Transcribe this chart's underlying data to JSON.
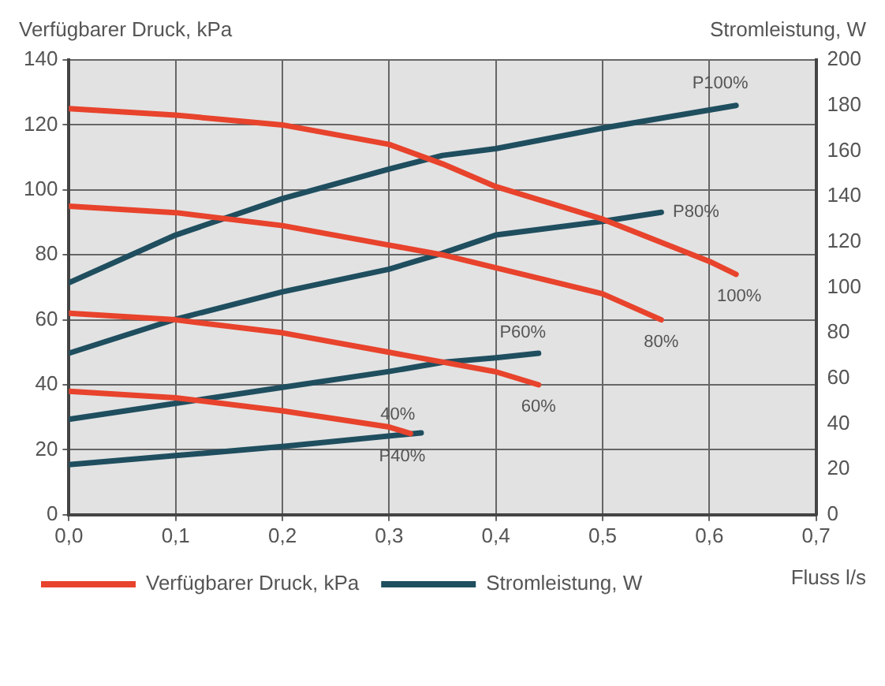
{
  "chart_data": {
    "type": "line",
    "ylabel": "Verfügbarer Druck, kPa",
    "y2label": "Stromleistung, W",
    "xlabel": "Fluss l/s",
    "xlim": [
      0,
      0.7
    ],
    "xticks": [
      {
        "value": 0,
        "label": "0,0"
      },
      {
        "value": 0.1,
        "label": "0,1"
      },
      {
        "value": 0.2,
        "label": "0,2"
      },
      {
        "value": 0.3,
        "label": "0,3"
      },
      {
        "value": 0.4,
        "label": "0,4"
      },
      {
        "value": 0.5,
        "label": "0,5"
      },
      {
        "value": 0.6,
        "label": "0,6"
      },
      {
        "value": 0.7,
        "label": "0,7"
      }
    ],
    "ylim": [
      0,
      140
    ],
    "yticks": [
      0,
      20,
      40,
      60,
      80,
      100,
      120,
      140
    ],
    "y2lim": [
      0,
      200
    ],
    "y2ticks": [
      0,
      20,
      40,
      60,
      80,
      100,
      120,
      140,
      160,
      180,
      200
    ],
    "grid": true,
    "legend": "bottom",
    "marker": "none",
    "line_style": "solid",
    "series": [
      {
        "name": "Verfügbarer Druck, kPa",
        "color": "#e8432c",
        "x": [
          0,
          0.1,
          0.2,
          0.3,
          0.35,
          0.4,
          0.5,
          0.6,
          0.625
        ],
        "values": [
          125,
          123,
          120,
          114,
          108,
          101,
          91,
          78,
          74
        ]
      },
      {
        "color": "#e8432c",
        "x": [
          0,
          0.1,
          0.2,
          0.3,
          0.35,
          0.4,
          0.5,
          0.555
        ],
        "values": [
          95,
          93,
          89,
          83,
          80,
          76,
          68,
          60
        ]
      },
      {
        "color": "#e8432c",
        "x": [
          0,
          0.1,
          0.2,
          0.3,
          0.35,
          0.4,
          0.44
        ],
        "values": [
          62,
          60,
          56,
          50,
          47,
          44,
          40
        ]
      },
      {
        "color": "#e8432c",
        "x": [
          0,
          0.1,
          0.2,
          0.3,
          0.32
        ],
        "values": [
          38,
          36,
          32,
          27,
          25
        ]
      },
      {
        "name": "Stromleistung, W",
        "color": "#1f4e5f",
        "axis": "y2",
        "x": [
          0,
          0.1,
          0.2,
          0.3,
          0.35,
          0.4,
          0.5,
          0.625
        ],
        "values": [
          102,
          123,
          139,
          152,
          158,
          161,
          170,
          180
        ]
      },
      {
        "color": "#1f4e5f",
        "axis": "y2",
        "x": [
          0,
          0.1,
          0.2,
          0.3,
          0.35,
          0.4,
          0.5,
          0.555
        ],
        "values": [
          71,
          86,
          98,
          108,
          115,
          123,
          129,
          133
        ]
      },
      {
        "color": "#1f4e5f",
        "axis": "y2",
        "x": [
          0,
          0.1,
          0.2,
          0.3,
          0.35,
          0.4,
          0.44
        ],
        "values": [
          42,
          49,
          56,
          63,
          67,
          69,
          71
        ]
      },
      {
        "color": "#1f4e5f",
        "axis": "y2",
        "x": [
          0,
          0.1,
          0.2,
          0.33
        ],
        "values": [
          22,
          26,
          30,
          36
        ]
      }
    ],
    "annotations": [
      "100%",
      "80%",
      "60%",
      "40%",
      "P100%",
      "P80%",
      "P60%",
      "P40%"
    ]
  }
}
